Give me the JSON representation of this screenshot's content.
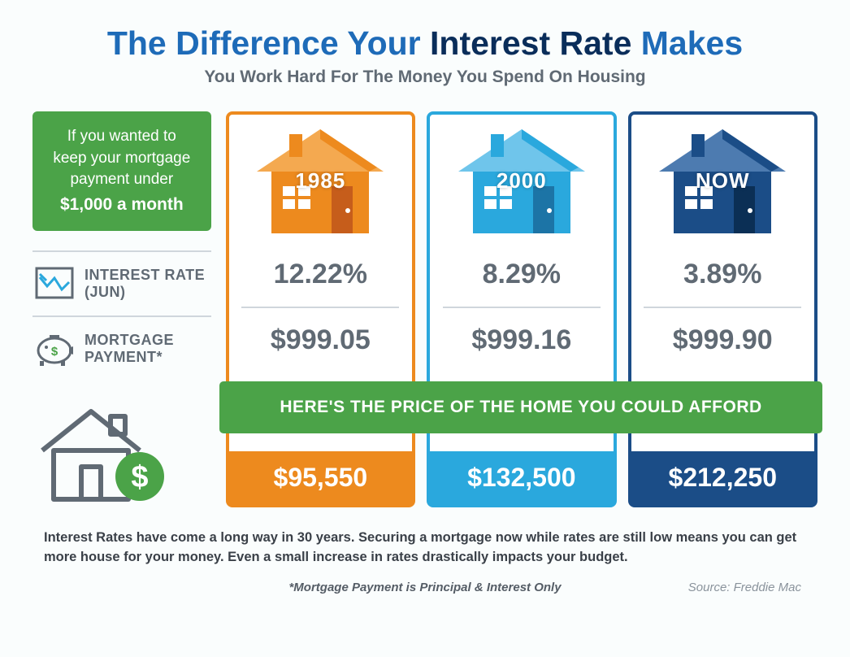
{
  "title": {
    "pre": "The Difference Your ",
    "em": "Interest Rate",
    "post": " Makes"
  },
  "subtitle": "You Work Hard For The Money You Spend On Housing",
  "greenbox": {
    "l1": "If you wanted to",
    "l2": "keep your mortgage",
    "l3": "payment under",
    "amt": "$1,000 a month"
  },
  "labels": {
    "rate": "INTEREST RATE (JUN)",
    "payment": "MORTGAGE PAYMENT*"
  },
  "banner": "HERE'S THE PRICE OF THE HOME YOU COULD AFFORD",
  "cards": [
    {
      "year": "1985",
      "rate": "12.22%",
      "payment": "$999.05",
      "price": "$95,550",
      "colors": {
        "border": "#ed8a1e",
        "light": "#f4a950",
        "door": "#c65d1b"
      }
    },
    {
      "year": "2000",
      "rate": "8.29%",
      "payment": "$999.16",
      "price": "$132,500",
      "colors": {
        "border": "#2aa8dd",
        "light": "#6fc5eb",
        "door": "#1c74a6"
      }
    },
    {
      "year": "NOW",
      "rate": "3.89%",
      "payment": "$999.90",
      "price": "$212,250",
      "colors": {
        "border": "#1b4d87",
        "light": "#4d7bb0",
        "door": "#0b2f55"
      }
    }
  ],
  "footer": {
    "t1": "Interest Rates have come a long way in 30 years. Securing a mortgage now while rates are still low means you can get more house for your money. ",
    "t2": "Even a small increase in rates drastically impacts your budget."
  },
  "note": "*Mortgage Payment is Principal & Interest Only",
  "source": "Source: Freddie Mac",
  "iconColors": {
    "chart": "#2aa8dd",
    "pig": "#606a74",
    "green": "#4ba348",
    "outline": "#606a74"
  }
}
